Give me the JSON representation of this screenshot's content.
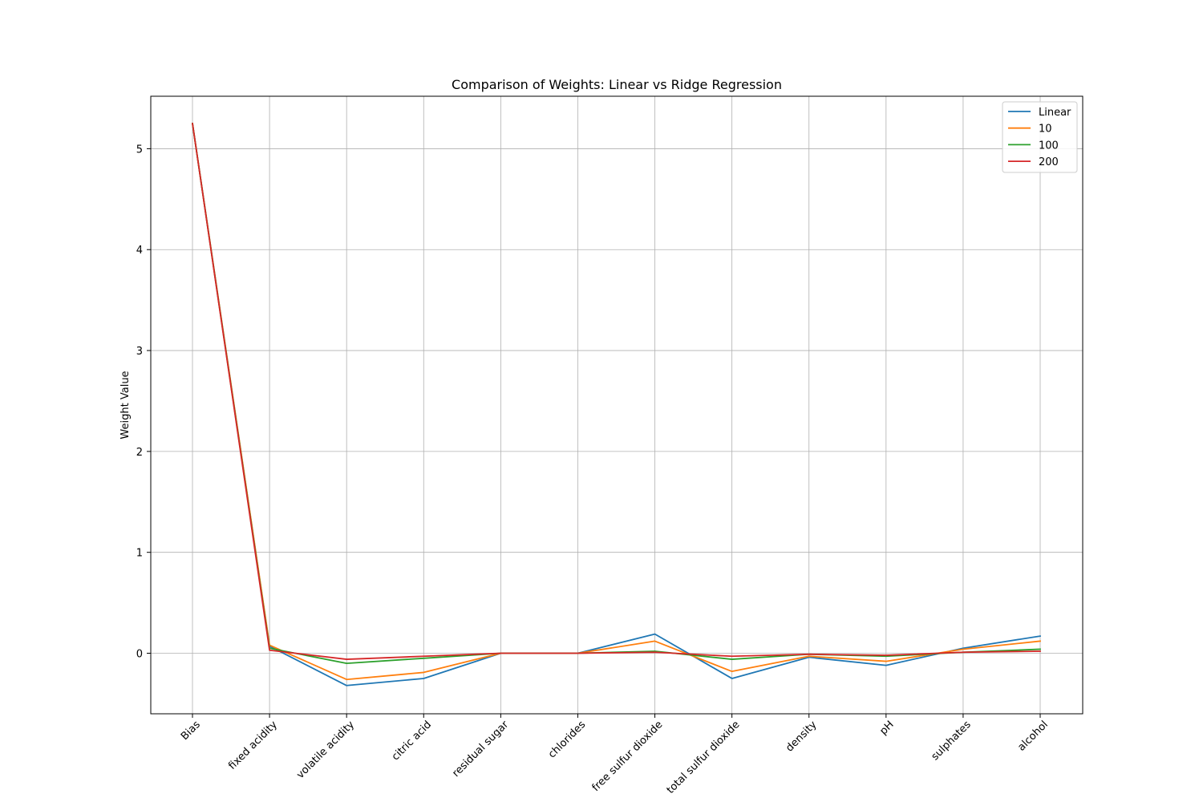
{
  "chart_data": {
    "type": "line",
    "title": "Comparison of Weights: Linear vs Ridge Regression",
    "xlabel": "",
    "ylabel": "Weight Value",
    "categories": [
      "Bias",
      "fixed acidity",
      "volatile acidity",
      "citric acid",
      "residual sugar",
      "chlorides",
      "free sulfur dioxide",
      "total sulfur dioxide",
      "density",
      "pH",
      "sulphates",
      "alcohol"
    ],
    "ylim": [
      -0.6,
      5.52
    ],
    "yticks": [
      "0",
      "1",
      "2",
      "3",
      "4",
      "5"
    ],
    "grid": true,
    "legend_position": "top-right",
    "series": [
      {
        "name": "Linear",
        "color": "#1f77b4",
        "values": [
          5.25,
          0.07,
          -0.32,
          -0.25,
          0.0,
          0.0,
          0.19,
          -0.25,
          -0.04,
          -0.12,
          0.05,
          0.17
        ]
      },
      {
        "name": "10",
        "color": "#ff7f0e",
        "values": [
          5.25,
          0.08,
          -0.26,
          -0.19,
          0.0,
          0.0,
          0.12,
          -0.18,
          -0.03,
          -0.08,
          0.04,
          0.12
        ]
      },
      {
        "name": "100",
        "color": "#2ca02c",
        "values": [
          5.25,
          0.05,
          -0.1,
          -0.05,
          0.0,
          0.0,
          0.02,
          -0.06,
          -0.01,
          -0.03,
          0.01,
          0.04
        ]
      },
      {
        "name": "200",
        "color": "#d62728",
        "values": [
          5.25,
          0.03,
          -0.06,
          -0.03,
          0.0,
          0.0,
          0.01,
          -0.03,
          -0.01,
          -0.02,
          0.01,
          0.02
        ]
      }
    ]
  }
}
